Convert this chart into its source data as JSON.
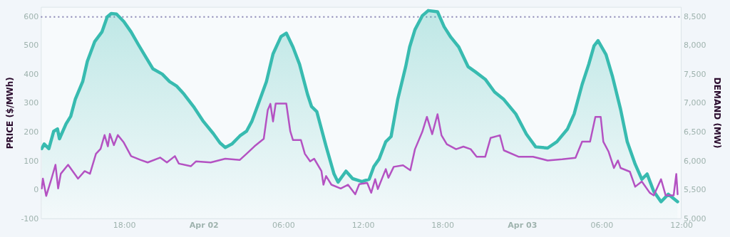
{
  "chart_data": {
    "type": "line",
    "ylabel": "PRICE ($/MWh)",
    "y2label": "DEMAND (MW)",
    "xlim": [
      "--04-01T11:42",
      "--04-03T12:00"
    ],
    "xticks": [
      {
        "value": "--04-01T18:00",
        "label": "18:00"
      },
      {
        "value": "--04-02T00:00",
        "label": "Apr 02"
      },
      {
        "value": "--04-02T06:00",
        "label": "06:00"
      },
      {
        "value": "--04-02T12:00",
        "label": "12:00"
      },
      {
        "value": "--04-02T18:00",
        "label": "18:00"
      },
      {
        "value": "--04-03T00:00",
        "label": "Apr 03"
      },
      {
        "value": "--04-03T06:00",
        "label": "06:00"
      },
      {
        "value": "--04-03T12:00",
        "label": "12:00"
      }
    ],
    "ylim": [
      -100,
      635
    ],
    "yticks": [
      {
        "value": -100,
        "label": "-100"
      },
      0,
      100,
      200,
      300,
      400,
      500,
      600
    ],
    "y2lim": [
      5000,
      8675
    ],
    "y2ticks": [
      {
        "value": 5000,
        "label": "5,000"
      },
      {
        "value": 5500,
        "label": "5,500"
      },
      {
        "value": 6000,
        "label": "6,000"
      },
      {
        "value": 6500,
        "label": "6,500"
      },
      {
        "value": 7000,
        "label": "7,000"
      },
      {
        "value": 7500,
        "label": "7,500"
      },
      {
        "value": 8000,
        "label": "8,000"
      },
      {
        "value": 8500,
        "label": "8,500"
      }
    ],
    "grid": false,
    "legend": false,
    "marker": "none",
    "ref_lines": [
      {
        "axis": "y",
        "value": 600,
        "color": "#8a86b4",
        "line_style": "dotted"
      }
    ],
    "series": [
      {
        "type": "area",
        "axis": "y2",
        "color": "#38bbb0",
        "x": [
          "--04-01T11:46",
          "--04-01T11:57",
          "--04-01T12:18",
          "--04-01T12:40",
          "--04-01T12:57",
          "--04-01T13:06",
          "--04-01T13:36",
          "--04-01T13:57",
          "--04-01T14:18",
          "--04-01T14:51",
          "--04-01T15:12",
          "--04-01T15:45",
          "--04-01T16:18",
          "--04-01T16:42",
          "--04-01T17:00",
          "--04-01T17:24",
          "--04-01T17:57",
          "--04-01T18:30",
          "--04-01T19:03",
          "--04-01T19:36",
          "--04-01T20:09",
          "--04-01T20:51",
          "--04-01T21:24",
          "--04-01T21:57",
          "--04-01T22:30",
          "--04-01T23:12",
          "--04-01T23:57",
          "--04-02T00:42",
          "--04-02T01:12",
          "--04-02T01:36",
          "--04-02T02:06",
          "--04-02T02:42",
          "--04-02T03:12",
          "--04-02T03:36",
          "--04-02T04:06",
          "--04-02T04:42",
          "--04-02T05:12",
          "--04-02T05:48",
          "--04-02T06:12",
          "--04-02T06:42",
          "--04-02T07:12",
          "--04-02T07:48",
          "--04-02T08:06",
          "--04-02T08:30",
          "--04-02T09:12",
          "--04-02T09:48",
          "--04-02T10:06",
          "--04-02T10:42",
          "--04-02T11:12",
          "--04-02T11:54",
          "--04-02T12:27",
          "--04-02T12:48",
          "--04-02T13:12",
          "--04-02T13:42",
          "--04-02T14:06",
          "--04-02T14:36",
          "--04-02T15:12",
          "--04-02T15:30",
          "--04-02T15:54",
          "--04-02T16:27",
          "--04-02T16:54",
          "--04-02T17:36",
          "--04-02T18:06",
          "--04-02T18:36",
          "--04-02T19:12",
          "--04-02T19:54",
          "--04-02T20:27",
          "--04-02T21:12",
          "--04-02T21:54",
          "--04-02T22:36",
          "--04-02T23:30",
          "--04-03T00:18",
          "--04-03T01:00",
          "--04-03T01:54",
          "--04-03T02:36",
          "--04-03T03:24",
          "--04-03T03:54",
          "--04-03T04:30",
          "--04-03T05:00",
          "--04-03T05:24",
          "--04-03T05:42",
          "--04-03T06:18",
          "--04-03T06:48",
          "--04-03T07:24",
          "--04-03T07:54",
          "--04-03T08:30",
          "--04-03T09:00",
          "--04-03T09:24",
          "--04-03T09:54",
          "--04-03T10:27",
          "--04-03T11:00",
          "--04-03T11:42"
        ],
        "values": [
          6220,
          6300,
          6220,
          6520,
          6560,
          6390,
          6650,
          6780,
          7080,
          7380,
          7730,
          8070,
          8240,
          8500,
          8560,
          8550,
          8420,
          8240,
          8020,
          7810,
          7600,
          7510,
          7380,
          7300,
          7160,
          6950,
          6690,
          6480,
          6320,
          6240,
          6300,
          6440,
          6520,
          6690,
          7000,
          7380,
          7860,
          8160,
          8220,
          7980,
          7680,
          7160,
          6950,
          6860,
          6260,
          5780,
          5640,
          5830,
          5700,
          5650,
          5690,
          5910,
          6040,
          6340,
          6430,
          7070,
          7640,
          7980,
          8280,
          8520,
          8610,
          8590,
          8330,
          8150,
          7980,
          7640,
          7550,
          7420,
          7200,
          7070,
          6820,
          6470,
          6250,
          6230,
          6340,
          6560,
          6820,
          7330,
          7680,
          8000,
          8090,
          7850,
          7460,
          6900,
          6340,
          5950,
          5690,
          5780,
          5480,
          5300,
          5430,
          5300
        ]
      },
      {
        "type": "line",
        "axis": "y",
        "color": "#b452c2",
        "x": [
          "--04-01T11:46",
          "--04-01T11:51",
          "--04-01T12:06",
          "--04-01T12:30",
          "--04-01T12:48",
          "--04-01T13:00",
          "--04-01T13:12",
          "--04-01T13:45",
          "--04-01T14:30",
          "--04-01T15:00",
          "--04-01T15:24",
          "--04-01T15:51",
          "--04-01T16:12",
          "--04-01T16:30",
          "--04-01T16:45",
          "--04-01T16:54",
          "--04-01T17:12",
          "--04-01T17:30",
          "--04-01T17:57",
          "--04-01T18:30",
          "--04-01T19:12",
          "--04-01T19:45",
          "--04-01T20:42",
          "--04-01T21:12",
          "--04-01T21:48",
          "--04-01T22:06",
          "--04-01T23:00",
          "--04-01T23:24",
          "--04-02T00:30",
          "--04-02T01:36",
          "--04-02T02:42",
          "--04-02T03:12",
          "--04-02T03:48",
          "--04-02T04:30",
          "--04-02T04:48",
          "--04-02T05:00",
          "--04-02T05:12",
          "--04-02T05:24",
          "--04-02T06:12",
          "--04-02T06:30",
          "--04-02T06:42",
          "--04-02T07:18",
          "--04-02T07:36",
          "--04-02T08:00",
          "--04-02T08:18",
          "--04-02T08:51",
          "--04-02T09:00",
          "--04-02T09:12",
          "--04-02T09:36",
          "--04-02T10:18",
          "--04-02T10:51",
          "--04-02T11:24",
          "--04-02T11:42",
          "--04-02T12:18",
          "--04-02T12:36",
          "--04-02T12:54",
          "--04-02T13:06",
          "--04-02T13:42",
          "--04-02T13:54",
          "--04-02T14:18",
          "--04-02T15:00",
          "--04-02T15:33",
          "--04-02T15:54",
          "--04-02T16:27",
          "--04-02T16:48",
          "--04-02T17:12",
          "--04-02T17:36",
          "--04-02T17:54",
          "--04-02T18:18",
          "--04-02T19:00",
          "--04-02T19:33",
          "--04-02T20:06",
          "--04-02T20:33",
          "--04-02T21:12",
          "--04-02T21:36",
          "--04-02T22:18",
          "--04-02T22:36",
          "--04-02T23:42",
          "--04-03T00:48",
          "--04-03T01:54",
          "--04-03T03:00",
          "--04-03T04:00",
          "--04-03T04:30",
          "--04-03T05:06",
          "--04-03T05:30",
          "--04-03T05:54",
          "--04-03T06:06",
          "--04-03T06:30",
          "--04-03T06:54",
          "--04-03T07:12",
          "--04-03T07:24",
          "--04-03T08:06",
          "--04-03T08:30",
          "--04-03T09:00",
          "--04-03T09:36",
          "--04-03T09:54",
          "--04-03T10:27",
          "--04-03T10:48",
          "--04-03T11:24",
          "--04-03T11:36",
          "--04-03T11:42"
        ],
        "values": [
          6,
          40,
          -20,
          40,
          88,
          6,
          57,
          88,
          40,
          66,
          57,
          126,
          143,
          191,
          152,
          195,
          156,
          191,
          165,
          118,
          105,
          96,
          113,
          96,
          118,
          92,
          83,
          100,
          96,
          109,
          105,
          126,
          152,
          178,
          277,
          299,
          238,
          300,
          300,
          204,
          174,
          174,
          126,
          100,
          109,
          66,
          19,
          49,
          19,
          6,
          19,
          -14,
          21,
          25,
          -9,
          38,
          4,
          73,
          43,
          81,
          86,
          69,
          142,
          202,
          254,
          194,
          263,
          190,
          159,
          142,
          151,
          142,
          116,
          116,
          181,
          190,
          138,
          116,
          116,
          103,
          107,
          112,
          168,
          168,
          254,
          254,
          168,
          133,
          77,
          103,
          77,
          64,
          12,
          30,
          -9,
          -18,
          38,
          -18,
          -18,
          56,
          -14
        ]
      }
    ]
  }
}
